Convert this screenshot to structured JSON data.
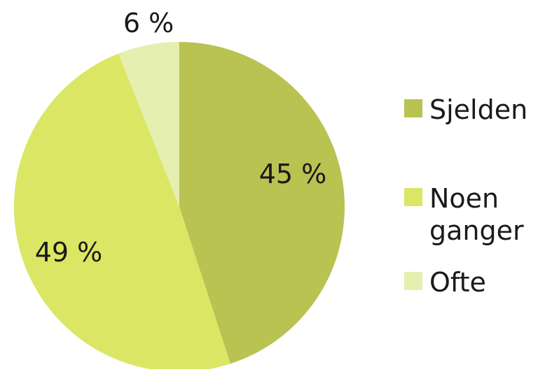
{
  "chart_data": {
    "type": "pie",
    "title": "",
    "start": "top",
    "direction": "clockwise",
    "legend_position": "right",
    "slices": [
      {
        "name": "Sjelden",
        "legend_lines": [
          "Sjelden"
        ],
        "value": 45,
        "label": "45 %",
        "color": "#b8c352"
      },
      {
        "name": "Noen ganger",
        "legend_lines": [
          "Noen",
          "ganger"
        ],
        "value": 49,
        "label": "49 %",
        "color": "#dbe664"
      },
      {
        "name": "Ofte",
        "legend_lines": [
          "Ofte"
        ],
        "value": 6,
        "label": "6 %",
        "color": "#e5efb0"
      }
    ]
  }
}
